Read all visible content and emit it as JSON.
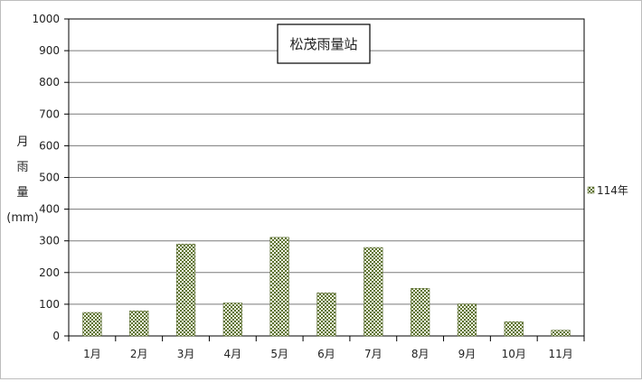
{
  "chart_data": {
    "type": "bar",
    "title": "松茂雨量站",
    "categories": [
      "1月",
      "2月",
      "3月",
      "4月",
      "5月",
      "6月",
      "7月",
      "8月",
      "9月",
      "10月",
      "11月"
    ],
    "series": [
      {
        "name": "114年",
        "values": [
          74,
          79,
          290,
          104,
          311,
          136,
          279,
          150,
          101,
          45,
          18
        ]
      }
    ],
    "ylabel_lines": [
      "月",
      "雨",
      "量",
      "(mm)"
    ],
    "ylim": [
      0,
      1000
    ],
    "yticks": [
      0,
      100,
      200,
      300,
      400,
      500,
      600,
      700,
      800,
      900,
      1000
    ],
    "grid": true,
    "legend_position": "right",
    "bar_color": "#6b7f3a"
  }
}
